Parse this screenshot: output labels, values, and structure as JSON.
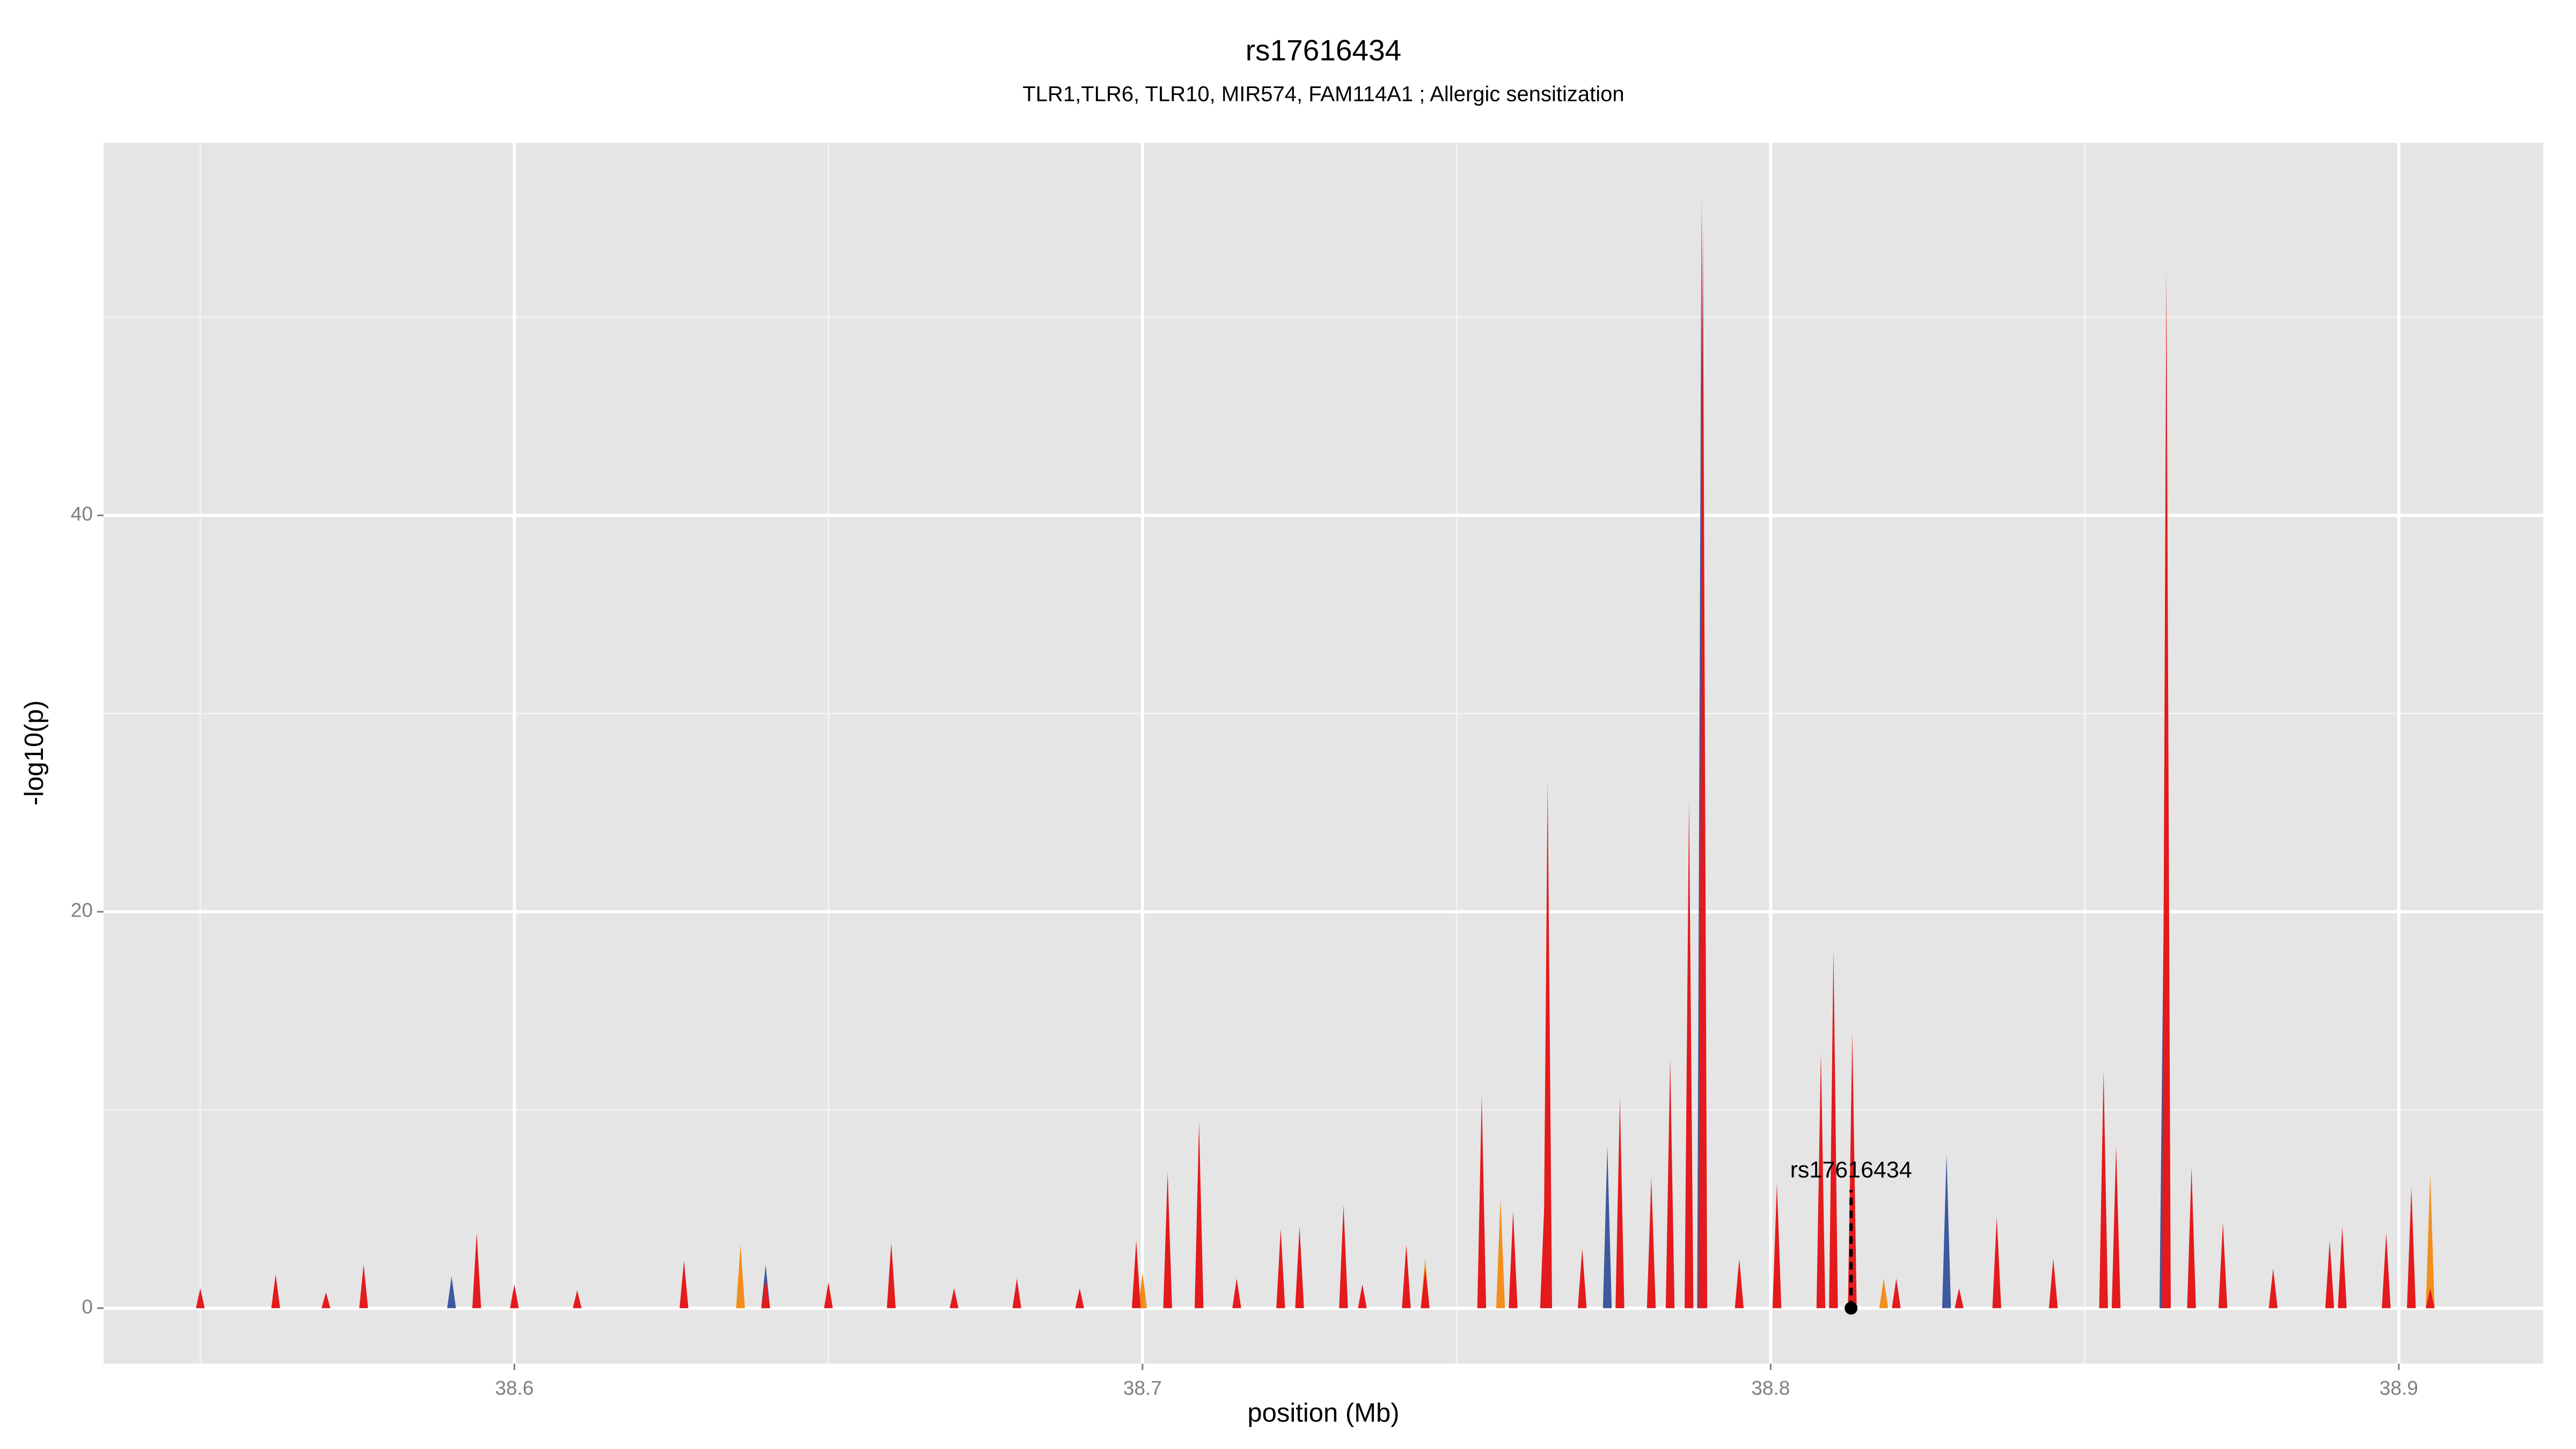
{
  "chart_data": {
    "type": "spike",
    "title": "rs17616434",
    "subtitle": "TLR1,TLR6, TLR10, MIR574, FAM114A1 ; Allergic sensitization",
    "x_label": "position (Mb)",
    "y_label": "-log10(p)",
    "xlim": [
      38.5346,
      38.923
    ],
    "ylim": [
      -2.8,
      58.8
    ],
    "xticks": [
      38.6,
      38.7,
      38.8,
      38.9
    ],
    "yticks": [
      0,
      20,
      40
    ],
    "x_minor_grid": [
      38.55,
      38.65,
      38.75,
      38.85
    ],
    "y_minor_grid": [
      10,
      30,
      50
    ],
    "grid": true,
    "panel_color": "#e5e5e5",
    "series": [
      {
        "color": "#f28e1c",
        "x": [
          38.636,
          38.7,
          38.745,
          38.757,
          38.818,
          38.905
        ],
        "values": [
          3.2,
          1.8,
          2.5,
          5.5,
          1.5,
          6.8
        ]
      },
      {
        "color": "#3d5a9e",
        "x": [
          38.59,
          38.64,
          38.774,
          38.789,
          38.828,
          38.8626
        ],
        "values": [
          1.6,
          2.2,
          8.2,
          56.1,
          7.8,
          20.6
        ]
      },
      {
        "color": "#e41a1c",
        "x": [
          38.55,
          38.562,
          38.57,
          38.576,
          38.594,
          38.6,
          38.61,
          38.627,
          38.64,
          38.65,
          38.66,
          38.67,
          38.68,
          38.69,
          38.699,
          38.704,
          38.709,
          38.715,
          38.722,
          38.725,
          38.732,
          38.735,
          38.742,
          38.745,
          38.754,
          38.759,
          38.764,
          38.7645,
          38.77,
          38.776,
          38.781,
          38.784,
          38.787,
          38.7892,
          38.795,
          38.801,
          38.808,
          38.81,
          38.813,
          38.82,
          38.83,
          38.836,
          38.845,
          38.853,
          38.855,
          38.863,
          38.867,
          38.872,
          38.88,
          38.889,
          38.891,
          38.898,
          38.902,
          38.905
        ],
        "values": [
          1.0,
          1.7,
          0.8,
          2.2,
          3.8,
          1.2,
          0.9,
          2.4,
          1.5,
          1.3,
          3.3,
          1.0,
          1.5,
          1.0,
          3.4,
          6.9,
          9.4,
          1.5,
          4.0,
          4.1,
          5.2,
          1.2,
          3.2,
          2.0,
          10.7,
          4.9,
          5.5,
          26.6,
          3.0,
          10.6,
          6.6,
          12.6,
          25.6,
          55.0,
          2.5,
          6.3,
          12.9,
          18.1,
          13.9,
          1.5,
          1.0,
          4.6,
          2.5,
          12.0,
          8.2,
          52.4,
          7.1,
          4.3,
          2.0,
          3.4,
          4.1,
          3.8,
          6.1,
          1.0
        ]
      }
    ],
    "annotation": {
      "label": "rs17616434",
      "x": 38.8128,
      "y": 0
    }
  }
}
